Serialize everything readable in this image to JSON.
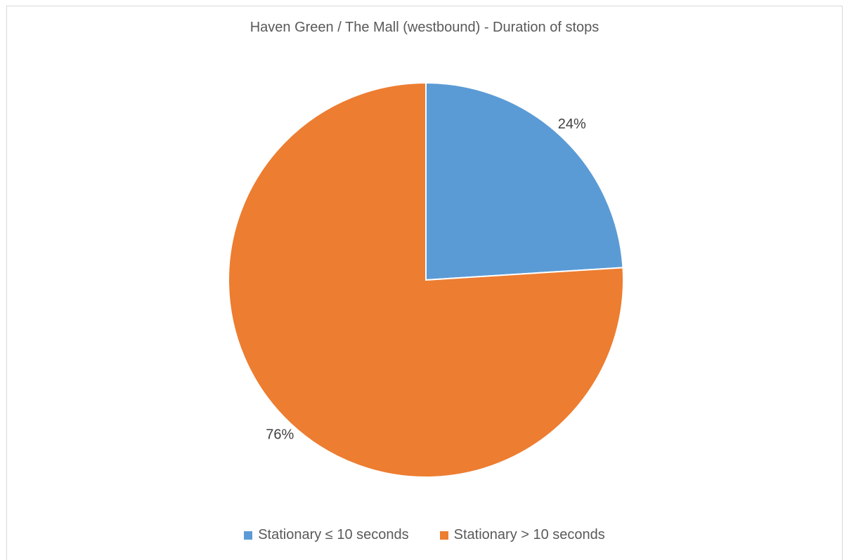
{
  "chart_data": {
    "type": "pie",
    "title": "Haven Green / The Mall (westbound) - Duration of stops",
    "categories": [
      "Stationary ≤ 10 seconds",
      "Stationary > 10 seconds"
    ],
    "values": [
      24,
      76
    ],
    "data_labels": [
      "24%",
      "76%"
    ],
    "colors": [
      "#5b9bd5",
      "#ed7d31"
    ],
    "legend_position": "bottom"
  }
}
